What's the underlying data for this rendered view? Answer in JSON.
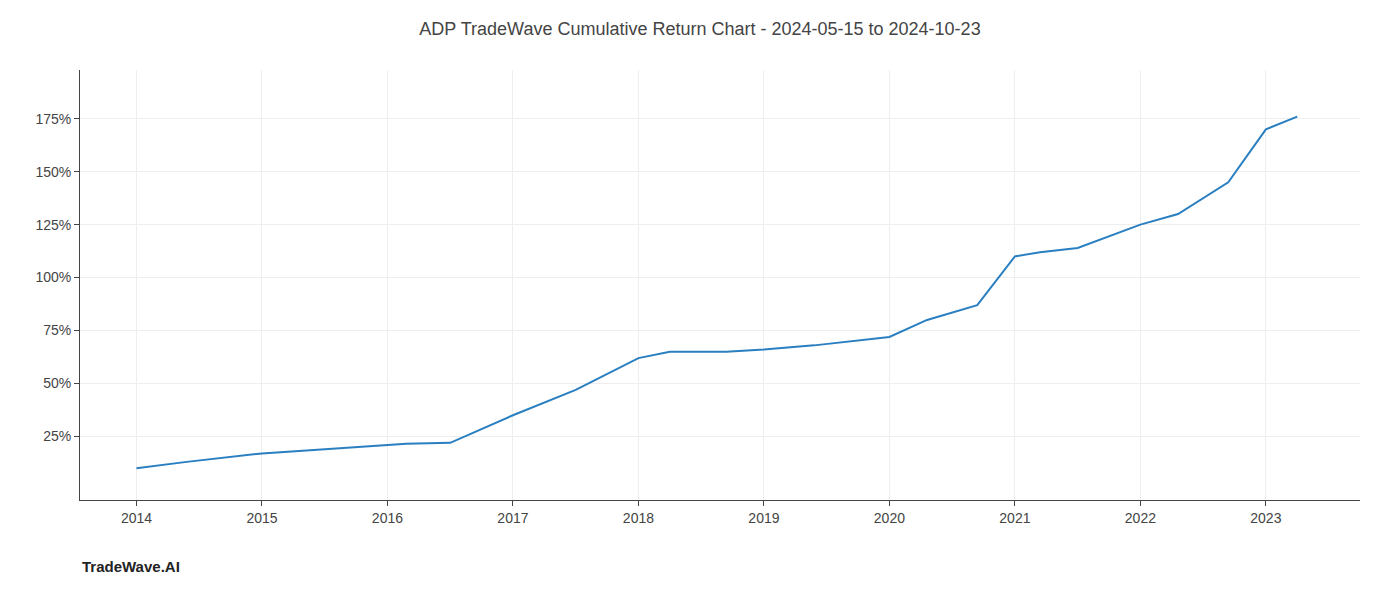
{
  "chart_data": {
    "type": "line",
    "title": "ADP TradeWave Cumulative Return Chart - 2024-05-15 to 2024-10-23",
    "annotations": [
      "TradeWave.AI"
    ],
    "x": [
      2014,
      2014.4,
      2015,
      2015.5,
      2016,
      2016.15,
      2016.5,
      2017,
      2017.5,
      2018,
      2018.25,
      2018.7,
      2019,
      2019.4,
      2020,
      2020.3,
      2020.7,
      2021,
      2021.2,
      2021.5,
      2022,
      2022.3,
      2022.7,
      2023,
      2023.25
    ],
    "values": [
      10,
      13,
      17,
      19,
      21,
      21.5,
      22,
      35,
      47,
      62,
      65,
      65,
      66,
      68,
      72,
      80,
      87,
      110,
      112,
      114,
      125,
      130,
      145,
      170,
      176
    ],
    "color": "#2a7fc1",
    "xlim": [
      2013.55,
      2023.75
    ],
    "xticks": [
      2014,
      2015,
      2016,
      2017,
      2018,
      2019,
      2020,
      2021,
      2022,
      2023
    ],
    "ylim": [
      -5,
      198
    ],
    "yticks": [
      {
        "value": 25,
        "label": "25%"
      },
      {
        "value": 50,
        "label": "50%"
      },
      {
        "value": 75,
        "label": "75%"
      },
      {
        "value": 100,
        "label": "100%"
      },
      {
        "value": 125,
        "label": "125%"
      },
      {
        "value": 150,
        "label": "150%"
      },
      {
        "value": 175,
        "label": "175%"
      }
    ],
    "grid": true
  }
}
